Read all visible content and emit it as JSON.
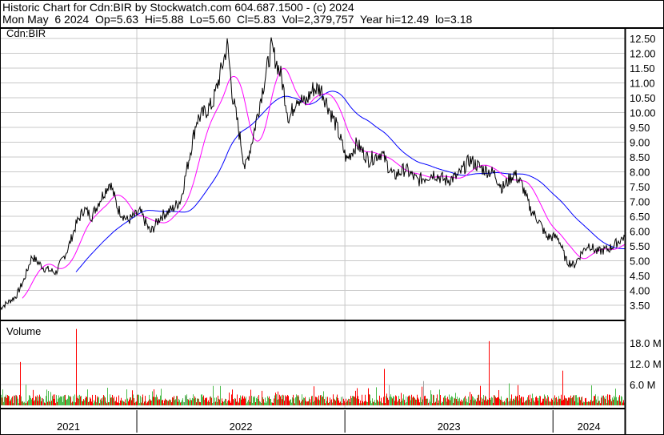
{
  "header": {
    "title": "Historic Chart for Cdn:BIR by Stockwatch.com 604.687.1500 - (c) 2024",
    "quote": "Mon May  6 2024  Op=5.63  Hi=5.88  Lo=5.60  Cl=5.83  Vol=2,379,757  Year hi=12.49  lo=3.18"
  },
  "chart_data": {
    "type": "line",
    "symbol_label": "Cdn:BIR",
    "volume_label": "Volume",
    "price_axis": {
      "ylim": [
        3.18,
        12.6
      ],
      "ticks": [
        "3.50",
        "4.00",
        "4.50",
        "5.00",
        "5.50",
        "6.00",
        "6.50",
        "7.00",
        "7.50",
        "8.00",
        "8.50",
        "9.00",
        "9.50",
        "10.00",
        "10.50",
        "11.00",
        "11.50",
        "12.00",
        "12.50"
      ]
    },
    "volume_axis": {
      "ticks": [
        "6.0 M",
        "12.0 M",
        "18.0 M"
      ],
      "tick_values_millions": [
        6,
        12,
        18
      ],
      "ylim_millions": [
        0,
        24
      ]
    },
    "x_range": [
      "2021-05-06",
      "2024-05-06"
    ],
    "year_labels": [
      "2021",
      "2022",
      "2023",
      "2024"
    ],
    "grid": true,
    "colors": {
      "price": "#000000",
      "ma_short": "#ff00ff",
      "ma_long": "#0000ff",
      "volume_up": "#4cbb4c",
      "volume_down": "#ff0000",
      "volume_flat": "#a0a0a0",
      "grid": "#c8c8c8"
    },
    "price_series": [
      [
        "2021-05-06",
        3.4
      ],
      [
        "2021-06-03",
        3.8
      ],
      [
        "2021-06-17",
        4.35
      ],
      [
        "2021-07-01",
        5.15
      ],
      [
        "2021-07-22",
        4.75
      ],
      [
        "2021-08-12",
        4.6
      ],
      [
        "2021-09-02",
        5.4
      ],
      [
        "2021-09-16",
        6.2
      ],
      [
        "2021-09-30",
        6.75
      ],
      [
        "2021-10-14",
        6.5
      ],
      [
        "2021-10-28",
        7.05
      ],
      [
        "2021-11-15",
        7.65
      ],
      [
        "2021-11-29",
        6.75
      ],
      [
        "2021-12-16",
        6.35
      ],
      [
        "2022-01-07",
        6.65
      ],
      [
        "2022-01-25",
        5.95
      ],
      [
        "2022-02-12",
        6.5
      ],
      [
        "2022-03-05",
        6.75
      ],
      [
        "2022-03-19",
        7.05
      ],
      [
        "2022-04-02",
        8.4
      ],
      [
        "2022-04-16",
        9.75
      ],
      [
        "2022-04-30",
        10.0
      ],
      [
        "2022-05-14",
        10.3
      ],
      [
        "2022-05-28",
        11.35
      ],
      [
        "2022-06-09",
        12.3
      ],
      [
        "2022-06-18",
        10.55
      ],
      [
        "2022-06-28",
        9.5
      ],
      [
        "2022-07-10",
        8.1
      ],
      [
        "2022-07-24",
        9.2
      ],
      [
        "2022-08-07",
        10.55
      ],
      [
        "2022-08-16",
        11.35
      ],
      [
        "2022-08-25",
        12.2
      ],
      [
        "2022-09-11",
        11.25
      ],
      [
        "2022-09-25",
        9.75
      ],
      [
        "2022-10-09",
        10.55
      ],
      [
        "2022-10-23",
        10.3
      ],
      [
        "2022-11-06",
        10.8
      ],
      [
        "2022-11-20",
        10.8
      ],
      [
        "2022-12-04",
        10.15
      ],
      [
        "2022-12-18",
        9.5
      ],
      [
        "2023-01-04",
        8.4
      ],
      [
        "2023-01-22",
        8.95
      ],
      [
        "2023-02-12",
        8.4
      ],
      [
        "2023-03-06",
        8.65
      ],
      [
        "2023-03-27",
        7.85
      ],
      [
        "2023-04-17",
        8.1
      ],
      [
        "2023-05-08",
        7.7
      ],
      [
        "2023-06-06",
        7.95
      ],
      [
        "2023-06-27",
        7.7
      ],
      [
        "2023-07-18",
        7.85
      ],
      [
        "2023-08-08",
        8.4
      ],
      [
        "2023-08-30",
        8.1
      ],
      [
        "2023-09-20",
        7.95
      ],
      [
        "2023-10-04",
        7.45
      ],
      [
        "2023-10-25",
        7.95
      ],
      [
        "2023-11-08",
        7.55
      ],
      [
        "2023-11-22",
        6.75
      ],
      [
        "2023-12-07",
        6.35
      ],
      [
        "2023-12-21",
        5.8
      ],
      [
        "2024-01-10",
        5.8
      ],
      [
        "2024-01-24",
        5.0
      ],
      [
        "2024-02-07",
        4.85
      ],
      [
        "2024-02-21",
        5.3
      ],
      [
        "2024-03-04",
        5.55
      ],
      [
        "2024-03-18",
        5.3
      ],
      [
        "2024-04-08",
        5.4
      ],
      [
        "2024-04-28",
        5.7
      ],
      [
        "2024-05-06",
        5.83
      ]
    ],
    "typical_volume_millions": 2.0,
    "volume_spikes_millions": [
      [
        "2021-06-10",
        12.5
      ],
      [
        "2021-09-16",
        22.0
      ],
      [
        "2023-03-11",
        10.5
      ],
      [
        "2023-09-11",
        18.5
      ],
      [
        "2024-01-17",
        10.0
      ]
    ]
  }
}
